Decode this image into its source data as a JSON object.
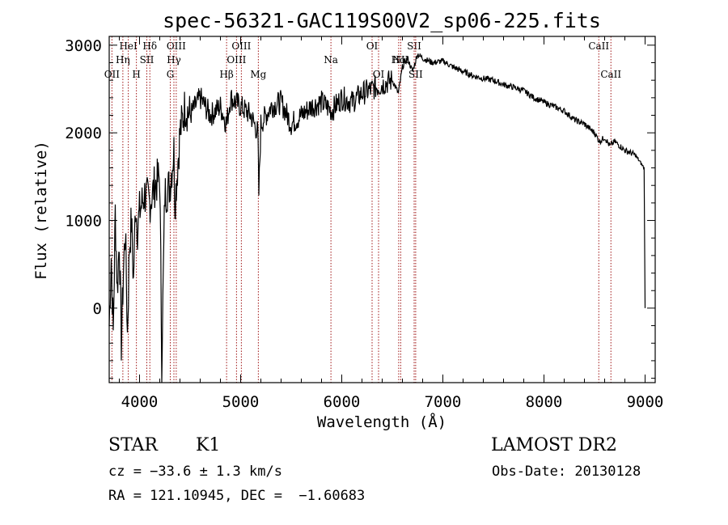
{
  "chart_data": {
    "type": "line",
    "title": "spec-56321-GAC119S00V2_sp06-225.fits",
    "xlabel": "Wavelength (Å)",
    "ylabel": "Flux (relative)",
    "xlim": [
      3700,
      9100
    ],
    "ylim": [
      -850,
      3100
    ],
    "xticks": [
      4000,
      5000,
      6000,
      7000,
      8000,
      9000
    ],
    "yticks": [
      0,
      1000,
      2000,
      3000
    ],
    "series": [
      {
        "x": [
          3700,
          3720,
          3740,
          3760,
          3780,
          3800,
          3820,
          3840,
          3860,
          3880,
          3900,
          3920,
          3940,
          3960,
          3980,
          4000,
          4050,
          4100,
          4150,
          4200,
          4220,
          4250,
          4300,
          4340,
          4350,
          4400,
          4450,
          4500,
          4550,
          4600,
          4700,
          4800,
          4860,
          4900,
          5000,
          5100,
          5170,
          5180,
          5200,
          5300,
          5400,
          5500,
          5600,
          5700,
          5800,
          5900,
          6000,
          6100,
          6200,
          6300,
          6400,
          6500,
          6560,
          6600,
          6650,
          6700,
          6750,
          6800,
          6900,
          7000,
          7100,
          7200,
          7300,
          7400,
          7500,
          7600,
          7700,
          7800,
          7900,
          8000,
          8100,
          8200,
          8300,
          8400,
          8500,
          8550,
          8600,
          8650,
          8700,
          8800,
          8900,
          8990,
          9000
        ],
        "y": [
          -200,
          600,
          -300,
          1100,
          200,
          800,
          -400,
          400,
          900,
          -300,
          700,
          1000,
          300,
          1200,
          900,
          1100,
          1300,
          1200,
          1400,
          1500,
          -600,
          1300,
          1400,
          1800,
          1200,
          2000,
          2300,
          2200,
          2300,
          2400,
          2200,
          2300,
          2100,
          2400,
          2300,
          2200,
          2000,
          1300,
          2100,
          2300,
          2350,
          2100,
          2200,
          2300,
          2350,
          2250,
          2400,
          2350,
          2450,
          2500,
          2550,
          2600,
          2450,
          2750,
          2850,
          2700,
          2900,
          2850,
          2800,
          2820,
          2750,
          2700,
          2650,
          2620,
          2600,
          2550,
          2520,
          2480,
          2400,
          2350,
          2300,
          2250,
          2150,
          2100,
          2000,
          1900,
          1950,
          1850,
          1900,
          1800,
          1750,
          1600,
          0
        ]
      }
    ],
    "spectral_lines": [
      {
        "label": "OII",
        "wave": 3727,
        "row": 3
      },
      {
        "label": "HeI",
        "wave": 3889,
        "row": 1
      },
      {
        "label": "Hη",
        "wave": 3835,
        "row": 2
      },
      {
        "label": "H",
        "wave": 3969,
        "row": 3
      },
      {
        "label": "Hδ",
        "wave": 4102,
        "row": 1
      },
      {
        "label": "SII",
        "wave": 4072,
        "row": 2
      },
      {
        "label": "OIII",
        "wave": 4363,
        "row": 1
      },
      {
        "label": "Hγ",
        "wave": 4340,
        "row": 2
      },
      {
        "label": "G",
        "wave": 4304,
        "row": 3
      },
      {
        "label": "Hβ",
        "wave": 4861,
        "row": 3
      },
      {
        "label": "OIII",
        "wave": 5007,
        "row": 1
      },
      {
        "label": "OIII",
        "wave": 4959,
        "row": 2
      },
      {
        "label": "Mg",
        "wave": 5175,
        "row": 3
      },
      {
        "label": "Na",
        "wave": 5893,
        "row": 2
      },
      {
        "label": "OI",
        "wave": 6300,
        "row": 1
      },
      {
        "label": "OI",
        "wave": 6364,
        "row": 3
      },
      {
        "label": "NII",
        "wave": 6583,
        "row": 2
      },
      {
        "label": "Hα",
        "wave": 6563,
        "row": 2
      },
      {
        "label": "SII",
        "wave": 6716,
        "row": 1
      },
      {
        "label": "SII",
        "wave": 6731,
        "row": 3
      },
      {
        "label": "CaII",
        "wave": 8542,
        "row": 1
      },
      {
        "label": "CaII",
        "wave": 8662,
        "row": 3
      }
    ]
  },
  "footer": {
    "object_class": "STAR",
    "subclass": "K1",
    "survey": "LAMOST DR2",
    "redshift": "cz = −33.6 ± 1.3 km/s",
    "obs_date": "Obs-Date: 20130128",
    "coords": "RA = 121.10945, DEC =  −1.60683"
  }
}
